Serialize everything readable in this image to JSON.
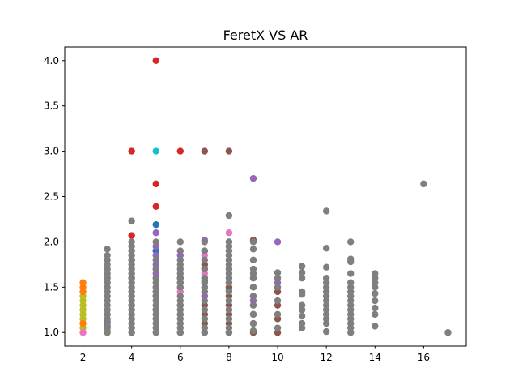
{
  "chart_data": {
    "type": "scatter",
    "title": "FeretX VS AR",
    "xlabel": "",
    "ylabel": "",
    "xlim": [
      1.25,
      17.75
    ],
    "ylim": [
      0.85,
      4.15
    ],
    "x_ticks": [
      2,
      4,
      6,
      8,
      10,
      12,
      14,
      16
    ],
    "x_tick_labels": [
      "2",
      "4",
      "6",
      "8",
      "10",
      "12",
      "14",
      "16"
    ],
    "y_ticks": [
      1.0,
      1.5,
      2.0,
      2.5,
      3.0,
      3.5,
      4.0
    ],
    "y_tick_labels": [
      "1.0",
      "1.5",
      "2.0",
      "2.5",
      "3.0",
      "3.5",
      "4.0"
    ],
    "grid": false,
    "series": [
      {
        "color": "#bcbd22",
        "points": [
          [
            2,
            1.05
          ],
          [
            2,
            1.1
          ],
          [
            2,
            1.15
          ],
          [
            2,
            1.2
          ],
          [
            2,
            1.25
          ],
          [
            2,
            1.3
          ],
          [
            2,
            1.35
          ],
          [
            2,
            1.4
          ],
          [
            3,
            1.0
          ],
          [
            3,
            1.02
          ]
        ]
      },
      {
        "color": "#ff7f0e",
        "points": [
          [
            2,
            1.1
          ],
          [
            2,
            1.45
          ],
          [
            2,
            1.5
          ],
          [
            2,
            1.55
          ],
          [
            3,
            1.2
          ],
          [
            3,
            1.55
          ]
        ]
      },
      {
        "color": "#e377c2",
        "points": [
          [
            2,
            1.0
          ],
          [
            3,
            1.6
          ],
          [
            5,
            1.5
          ],
          [
            6,
            1.45
          ],
          [
            6,
            1.5
          ],
          [
            7,
            1.65
          ],
          [
            7,
            1.85
          ],
          [
            8,
            2.1
          ],
          [
            8,
            1.55
          ]
        ]
      },
      {
        "color": "#1f77b4",
        "points": [
          [
            3,
            1.07
          ],
          [
            3,
            1.12
          ],
          [
            4,
            1.3
          ],
          [
            5,
            2.19
          ],
          [
            5,
            1.9
          ],
          [
            6,
            1.6
          ]
        ]
      },
      {
        "color": "#d62728",
        "points": [
          [
            4,
            3.0
          ],
          [
            5,
            4.0
          ],
          [
            5,
            2.64
          ],
          [
            5,
            2.39
          ],
          [
            6,
            3.0
          ],
          [
            4,
            2.07
          ],
          [
            4,
            1.8
          ],
          [
            5,
            1.4
          ],
          [
            6,
            1.3
          ],
          [
            7,
            1.7
          ]
        ]
      },
      {
        "color": "#17becf",
        "points": [
          [
            5,
            3.0
          ],
          [
            8,
            2.0
          ],
          [
            8,
            1.47
          ],
          [
            7,
            1.55
          ]
        ]
      },
      {
        "color": "#8c564b",
        "points": [
          [
            7,
            3.0
          ],
          [
            8,
            3.0
          ],
          [
            4,
            1.6
          ],
          [
            5,
            1.25
          ],
          [
            6,
            1.55
          ],
          [
            6,
            1.2
          ],
          [
            6,
            1.0
          ],
          [
            7,
            1.0
          ],
          [
            7,
            1.1
          ],
          [
            7,
            1.2
          ],
          [
            7,
            1.3
          ],
          [
            7,
            1.4
          ],
          [
            7,
            1.5
          ],
          [
            7,
            1.75
          ],
          [
            7,
            1.9
          ],
          [
            8,
            1.0
          ],
          [
            8,
            1.1
          ],
          [
            8,
            1.2
          ],
          [
            8,
            1.3
          ],
          [
            8,
            1.4
          ],
          [
            8,
            1.5
          ],
          [
            9,
            1.0
          ],
          [
            9,
            1.1
          ],
          [
            9,
            1.2
          ],
          [
            9,
            1.3
          ],
          [
            9,
            1.4
          ],
          [
            9,
            1.5
          ],
          [
            9,
            2.02
          ],
          [
            10,
            1.0
          ],
          [
            10,
            1.15
          ],
          [
            10,
            1.3
          ],
          [
            10,
            1.45
          ]
        ]
      },
      {
        "color": "#9467bd",
        "points": [
          [
            5,
            2.1
          ],
          [
            5,
            1.95
          ],
          [
            5,
            1.85
          ],
          [
            5,
            1.75
          ],
          [
            5,
            1.65
          ],
          [
            6,
            1.85
          ],
          [
            7,
            2.02
          ],
          [
            9,
            2.7
          ],
          [
            9,
            1.6
          ],
          [
            9,
            1.35
          ],
          [
            10,
            2.0
          ],
          [
            10,
            1.55
          ],
          [
            7,
            1.4
          ]
        ]
      },
      {
        "color": "#2ca02c",
        "points": [
          [
            7,
            1.57
          ],
          [
            7,
            1.6
          ]
        ]
      },
      {
        "color": "#7f7f7f",
        "points": [
          [
            3,
            1.0
          ],
          [
            3,
            1.05
          ],
          [
            3,
            1.1
          ],
          [
            3,
            1.15
          ],
          [
            3,
            1.2
          ],
          [
            3,
            1.25
          ],
          [
            3,
            1.3
          ],
          [
            3,
            1.35
          ],
          [
            3,
            1.4
          ],
          [
            3,
            1.45
          ],
          [
            3,
            1.5
          ],
          [
            3,
            1.55
          ],
          [
            3,
            1.6
          ],
          [
            3,
            1.65
          ],
          [
            3,
            1.7
          ],
          [
            3,
            1.75
          ],
          [
            3,
            1.8
          ],
          [
            3,
            1.85
          ],
          [
            3,
            1.92
          ],
          [
            4,
            1.0
          ],
          [
            4,
            1.05
          ],
          [
            4,
            1.1
          ],
          [
            4,
            1.15
          ],
          [
            4,
            1.2
          ],
          [
            4,
            1.25
          ],
          [
            4,
            1.3
          ],
          [
            4,
            1.35
          ],
          [
            4,
            1.4
          ],
          [
            4,
            1.45
          ],
          [
            4,
            1.5
          ],
          [
            4,
            1.55
          ],
          [
            4,
            1.6
          ],
          [
            4,
            1.65
          ],
          [
            4,
            1.7
          ],
          [
            4,
            1.75
          ],
          [
            4,
            1.8
          ],
          [
            4,
            1.85
          ],
          [
            4,
            1.9
          ],
          [
            4,
            1.95
          ],
          [
            4,
            2.0
          ],
          [
            4,
            2.23
          ],
          [
            5,
            1.0
          ],
          [
            5,
            1.05
          ],
          [
            5,
            1.1
          ],
          [
            5,
            1.15
          ],
          [
            5,
            1.2
          ],
          [
            5,
            1.25
          ],
          [
            5,
            1.3
          ],
          [
            5,
            1.35
          ],
          [
            5,
            1.4
          ],
          [
            5,
            1.45
          ],
          [
            5,
            1.5
          ],
          [
            5,
            1.55
          ],
          [
            5,
            1.6
          ],
          [
            5,
            1.7
          ],
          [
            5,
            1.8
          ],
          [
            5,
            2.0
          ],
          [
            6,
            1.0
          ],
          [
            6,
            1.05
          ],
          [
            6,
            1.1
          ],
          [
            6,
            1.15
          ],
          [
            6,
            1.2
          ],
          [
            6,
            1.25
          ],
          [
            6,
            1.3
          ],
          [
            6,
            1.35
          ],
          [
            6,
            1.4
          ],
          [
            6,
            1.5
          ],
          [
            6,
            1.55
          ],
          [
            6,
            1.6
          ],
          [
            6,
            1.65
          ],
          [
            6,
            1.7
          ],
          [
            6,
            1.75
          ],
          [
            6,
            1.8
          ],
          [
            6,
            1.9
          ],
          [
            6,
            2.0
          ],
          [
            7,
            1.0
          ],
          [
            7,
            1.05
          ],
          [
            7,
            1.15
          ],
          [
            7,
            1.25
          ],
          [
            7,
            1.35
          ],
          [
            7,
            1.45
          ],
          [
            7,
            1.5
          ],
          [
            7,
            1.55
          ],
          [
            7,
            1.6
          ],
          [
            7,
            1.7
          ],
          [
            7,
            1.8
          ],
          [
            7,
            1.9
          ],
          [
            7,
            2.0
          ],
          [
            8,
            1.0
          ],
          [
            8,
            1.05
          ],
          [
            8,
            1.15
          ],
          [
            8,
            1.25
          ],
          [
            8,
            1.35
          ],
          [
            8,
            1.45
          ],
          [
            8,
            1.55
          ],
          [
            8,
            1.6
          ],
          [
            8,
            1.65
          ],
          [
            8,
            1.7
          ],
          [
            8,
            1.75
          ],
          [
            8,
            1.8
          ],
          [
            8,
            1.85
          ],
          [
            8,
            1.9
          ],
          [
            8,
            1.95
          ],
          [
            8,
            2.0
          ],
          [
            8,
            2.29
          ],
          [
            9,
            1.02
          ],
          [
            9,
            1.1
          ],
          [
            9,
            1.2
          ],
          [
            9,
            1.3
          ],
          [
            9,
            1.4
          ],
          [
            9,
            1.5
          ],
          [
            9,
            1.6
          ],
          [
            9,
            1.65
          ],
          [
            9,
            1.7
          ],
          [
            9,
            1.8
          ],
          [
            9,
            1.92
          ],
          [
            9,
            2.0
          ],
          [
            10,
            1.05
          ],
          [
            10,
            1.2
          ],
          [
            10,
            1.35
          ],
          [
            10,
            1.5
          ],
          [
            10,
            1.6
          ],
          [
            10,
            1.66
          ],
          [
            11,
            1.05
          ],
          [
            11,
            1.1
          ],
          [
            11,
            1.18
          ],
          [
            11,
            1.25
          ],
          [
            11,
            1.3
          ],
          [
            11,
            1.42
          ],
          [
            11,
            1.45
          ],
          [
            11,
            1.6
          ],
          [
            11,
            1.66
          ],
          [
            11,
            1.73
          ],
          [
            12,
            1.01
          ],
          [
            12,
            1.1
          ],
          [
            12,
            1.15
          ],
          [
            12,
            1.2
          ],
          [
            12,
            1.25
          ],
          [
            12,
            1.3
          ],
          [
            12,
            1.35
          ],
          [
            12,
            1.4
          ],
          [
            12,
            1.45
          ],
          [
            12,
            1.5
          ],
          [
            12,
            1.55
          ],
          [
            12,
            1.6
          ],
          [
            12,
            1.72
          ],
          [
            12,
            1.93
          ],
          [
            12,
            2.34
          ],
          [
            13,
            1.0
          ],
          [
            13,
            1.05
          ],
          [
            13,
            1.1
          ],
          [
            13,
            1.15
          ],
          [
            13,
            1.2
          ],
          [
            13,
            1.25
          ],
          [
            13,
            1.3
          ],
          [
            13,
            1.35
          ],
          [
            13,
            1.4
          ],
          [
            13,
            1.45
          ],
          [
            13,
            1.5
          ],
          [
            13,
            1.55
          ],
          [
            13,
            1.65
          ],
          [
            13,
            1.78
          ],
          [
            13,
            1.81
          ],
          [
            13,
            2.0
          ],
          [
            14,
            1.07
          ],
          [
            14,
            1.2
          ],
          [
            14,
            1.27
          ],
          [
            14,
            1.35
          ],
          [
            14,
            1.43
          ],
          [
            14,
            1.5
          ],
          [
            14,
            1.55
          ],
          [
            14,
            1.6
          ],
          [
            14,
            1.65
          ],
          [
            16,
            2.64
          ],
          [
            17,
            1.0
          ]
        ]
      }
    ]
  }
}
